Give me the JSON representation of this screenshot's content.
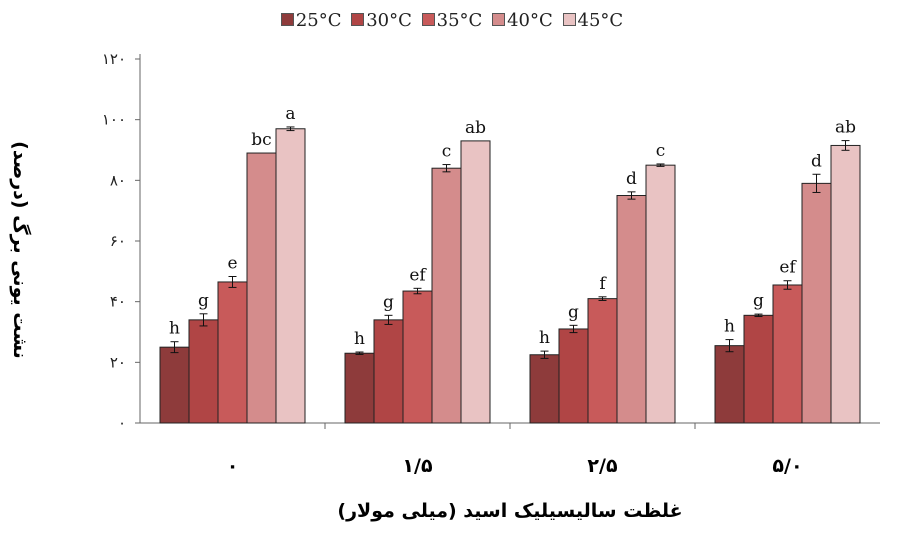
{
  "chart_data": {
    "type": "bar",
    "ylabel": "نشت یونی برگ (درصد)",
    "xlabel": "غلظت سالیسیلیک اسید (میلی مولار)",
    "ylim": [
      0,
      120
    ],
    "yticks": [
      "۰",
      "۲۰",
      "۴۰",
      "۶۰",
      "۸۰",
      "۱۰۰",
      "۱۲۰"
    ],
    "ytick_values": [
      0,
      20,
      40,
      60,
      80,
      100,
      120
    ],
    "categories": [
      "۰",
      "۱/۵",
      "۲/۵",
      "۵/۰"
    ],
    "legend_position": "top",
    "grid": false,
    "series": [
      {
        "name": "25°C",
        "color": "#8e3b3b",
        "values": [
          25,
          23,
          22.5,
          25.5
        ],
        "errors": [
          1.8,
          0.4,
          1.2,
          2.0
        ],
        "letters": [
          "h",
          "h",
          "h",
          "h"
        ]
      },
      {
        "name": "30°C",
        "color": "#b04545",
        "values": [
          34,
          34,
          31,
          35.5
        ],
        "errors": [
          2.0,
          1.5,
          1.2,
          0.4
        ],
        "letters": [
          "g",
          "g",
          "g",
          "g"
        ]
      },
      {
        "name": "35°C",
        "color": "#c85a5a",
        "values": [
          46.5,
          43.5,
          41,
          45.5
        ],
        "errors": [
          1.8,
          0.9,
          0.6,
          1.4
        ],
        "letters": [
          "e",
          "ef",
          "f",
          "ef"
        ]
      },
      {
        "name": "40°C",
        "color": "#d48c8c",
        "values": [
          89,
          84,
          75,
          79
        ],
        "errors": [
          0,
          1.2,
          1.2,
          3.0
        ],
        "letters": [
          "bc",
          "c",
          "d",
          "d"
        ]
      },
      {
        "name": "45°C",
        "color": "#e9c3c3",
        "values": [
          97,
          93,
          85,
          91.5
        ],
        "errors": [
          0.6,
          0,
          0.4,
          1.6
        ],
        "letters": [
          "a",
          "ab",
          "c",
          "ab"
        ]
      }
    ]
  }
}
